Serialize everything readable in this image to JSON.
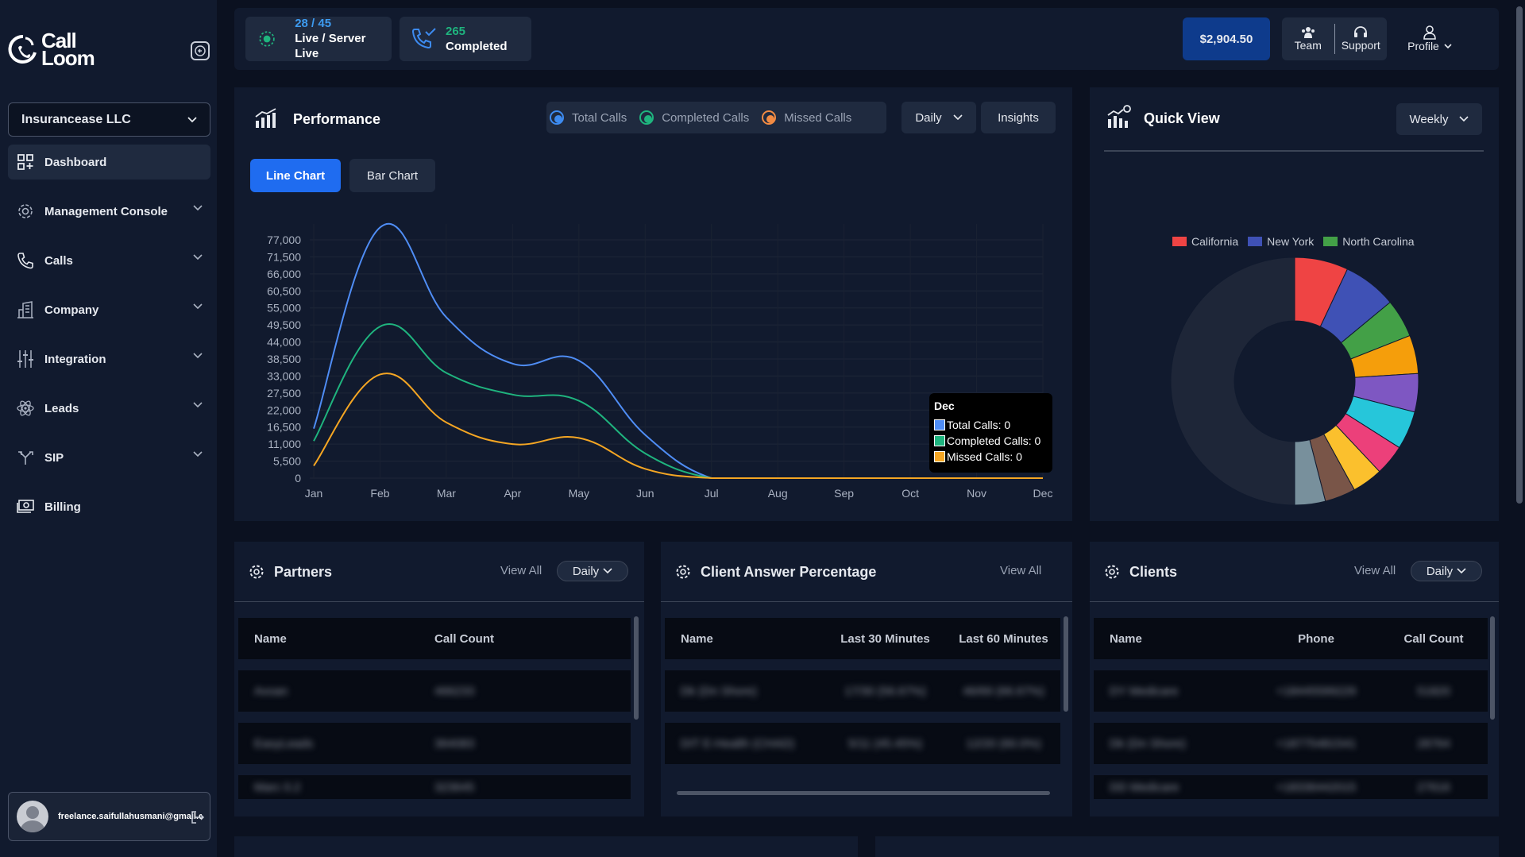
{
  "brand": {
    "line1": "Call",
    "line2": "Loom"
  },
  "sidebar": {
    "company_select": "Insurancease LLC",
    "items": [
      {
        "label": "Dashboard",
        "icon": "grid-icon"
      },
      {
        "label": "Management Console",
        "icon": "gear-icon"
      },
      {
        "label": "Calls",
        "icon": "phone-icon"
      },
      {
        "label": "Company",
        "icon": "building-icon"
      },
      {
        "label": "Integration",
        "icon": "sliders-icon"
      },
      {
        "label": "Leads",
        "icon": "atom-icon"
      },
      {
        "label": "SIP",
        "icon": "fork-icon"
      },
      {
        "label": "Billing",
        "icon": "money-icon"
      }
    ],
    "user_email": "freelance.saifullahusmani@gmail.com"
  },
  "topbar": {
    "live_count": "28 / 45",
    "live_label": "Live / Server Live",
    "completed_count": "265",
    "completed_label": "Completed",
    "balance": "$2,904.50",
    "team": "Team",
    "support": "Support",
    "profile": "Profile"
  },
  "performance": {
    "title": "Performance",
    "legend": [
      "Total Calls",
      "Completed Calls",
      "Missed Calls"
    ],
    "period": "Daily",
    "insights": "Insights",
    "tabs": [
      "Line Chart",
      "Bar Chart"
    ],
    "tooltip": {
      "title": "Dec",
      "lines": [
        "Total Calls: 0",
        "Completed Calls: 0",
        "Missed Calls: 0"
      ]
    }
  },
  "chart_data": [
    {
      "type": "line",
      "title": "",
      "x": [
        "Jan",
        "Feb",
        "Mar",
        "Apr",
        "May",
        "Jun",
        "Jul",
        "Aug",
        "Sep",
        "Oct",
        "Nov",
        "Dec"
      ],
      "yticks": [
        "77,000",
        "71,500",
        "66,000",
        "60,500",
        "55,000",
        "49,500",
        "44,000",
        "38,500",
        "33,000",
        "27,500",
        "22,000",
        "16,500",
        "11,000",
        "5,500",
        "0"
      ],
      "ylim": [
        0,
        77000
      ],
      "grid": true,
      "series": [
        {
          "name": "Total Calls",
          "color": "#4f8df5",
          "values": [
            16000,
            81000,
            52000,
            37000,
            38000,
            14000,
            0,
            0,
            0,
            0,
            0,
            0
          ]
        },
        {
          "name": "Completed Calls",
          "color": "#1fb47e",
          "values": [
            12000,
            49000,
            34000,
            27000,
            25000,
            8000,
            0,
            0,
            0,
            0,
            0,
            0
          ]
        },
        {
          "name": "Missed Calls",
          "color": "#f5a623",
          "values": [
            4000,
            33500,
            18000,
            11000,
            13000,
            3000,
            0,
            0,
            0,
            0,
            0,
            0
          ]
        }
      ]
    },
    {
      "type": "pie",
      "title": "",
      "legend": [
        "California",
        "New York",
        "North Carolina"
      ],
      "legend_position": "top",
      "slices": [
        {
          "name": "California",
          "value": 7,
          "color": "#ef4444"
        },
        {
          "name": "New York",
          "value": 7,
          "color": "#3f51b5"
        },
        {
          "name": "North Carolina",
          "value": 5,
          "color": "#43a047"
        },
        {
          "name": "",
          "value": 5,
          "color": "#f59e0b"
        },
        {
          "name": "",
          "value": 5,
          "color": "#7e57c2"
        },
        {
          "name": "",
          "value": 5,
          "color": "#26c6da"
        },
        {
          "name": "",
          "value": 4,
          "color": "#ec407a"
        },
        {
          "name": "",
          "value": 4,
          "color": "#fbc02d"
        },
        {
          "name": "",
          "value": 4,
          "color": "#795548"
        },
        {
          "name": "",
          "value": 4,
          "color": "#78909c"
        },
        {
          "name": "",
          "value": 50,
          "color": "#1e2638"
        }
      ]
    }
  ],
  "quick_view": {
    "title": "Quick View",
    "period": "Weekly"
  },
  "partners": {
    "title": "Partners",
    "view_all": "View All",
    "period": "Daily",
    "columns": [
      "Name",
      "Call Count"
    ],
    "rows": [
      [
        "Avoan",
        "466233"
      ],
      [
        "EasyLeads",
        "364083"
      ],
      [
        "Marc 0.2",
        "323645"
      ]
    ]
  },
  "client_answer": {
    "title": "Client Answer Percentage",
    "view_all": "View All",
    "columns": [
      "Name",
      "Last 30 Minutes",
      "Last 60 Minutes"
    ],
    "rows": [
      [
        "Dk (Dn Shore)",
        "17/30 (56.67%)",
        "46/69 (66.67%)"
      ],
      [
        "DIT E-Health (CHAD)",
        "5/11 (45.45%)",
        "12/20 (60.0%)"
      ]
    ]
  },
  "clients": {
    "title": "Clients",
    "view_all": "View All",
    "period": "Daily",
    "columns": [
      "Name",
      "Phone",
      "Call Count"
    ],
    "rows": [
      [
        "DY Medicare",
        "+18445599229",
        "51820"
      ],
      [
        "Dk (Dn Shore)",
        "+18775481541",
        "28764"
      ],
      [
        "DD Medicare",
        "+18336442015",
        "27616"
      ]
    ]
  }
}
